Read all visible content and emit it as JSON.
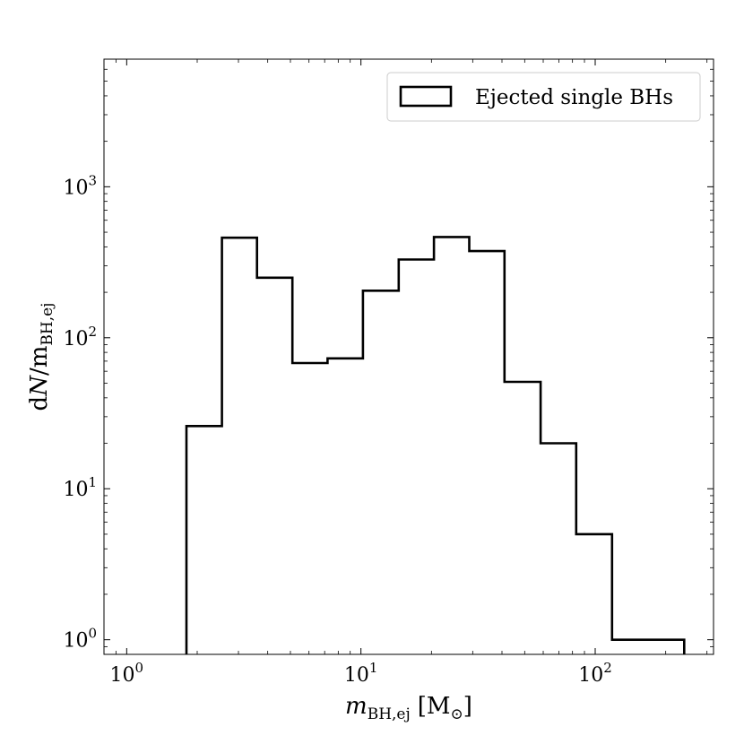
{
  "chart_data": {
    "type": "histogram",
    "xscale": "log",
    "yscale": "log",
    "xlim": [
      0.8,
      320
    ],
    "ylim": [
      0.8,
      7000
    ],
    "xlabel": {
      "var": "m",
      "sub": "BH,ej",
      "unit_open": "[M",
      "unit_sub": "⊙",
      "unit_close": "]"
    },
    "ylabel": {
      "d": "d",
      "var": "N",
      "rest": "/m",
      "sub": "BH,ej"
    },
    "x_ticks": [
      {
        "value": 1,
        "base": "10",
        "exp": "0"
      },
      {
        "value": 10,
        "base": "10",
        "exp": "1"
      },
      {
        "value": 100,
        "base": "10",
        "exp": "2"
      }
    ],
    "y_ticks": [
      {
        "value": 1,
        "base": "10",
        "exp": "0"
      },
      {
        "value": 10,
        "base": "10",
        "exp": "1"
      },
      {
        "value": 100,
        "base": "10",
        "exp": "2"
      },
      {
        "value": 1000,
        "base": "10",
        "exp": "3"
      }
    ],
    "legend": {
      "position": "top-right",
      "label": "Ejected single BHs"
    },
    "series": [
      {
        "label": "Ejected single BHs",
        "style": "step",
        "color": "#000000",
        "bins": [
          {
            "x0": 1.8,
            "x1": 2.55,
            "y": 26
          },
          {
            "x0": 2.55,
            "x1": 3.6,
            "y": 460
          },
          {
            "x0": 3.6,
            "x1": 5.1,
            "y": 250
          },
          {
            "x0": 5.1,
            "x1": 7.2,
            "y": 68
          },
          {
            "x0": 7.2,
            "x1": 10.2,
            "y": 73
          },
          {
            "x0": 10.2,
            "x1": 14.5,
            "y": 205
          },
          {
            "x0": 14.5,
            "x1": 20.5,
            "y": 330
          },
          {
            "x0": 20.5,
            "x1": 29,
            "y": 465
          },
          {
            "x0": 29,
            "x1": 41,
            "y": 375
          },
          {
            "x0": 41,
            "x1": 58.5,
            "y": 51
          },
          {
            "x0": 58.5,
            "x1": 83,
            "y": 20
          },
          {
            "x0": 83,
            "x1": 118,
            "y": 5
          },
          {
            "x0": 118,
            "x1": 240,
            "y": 1
          }
        ]
      }
    ]
  }
}
